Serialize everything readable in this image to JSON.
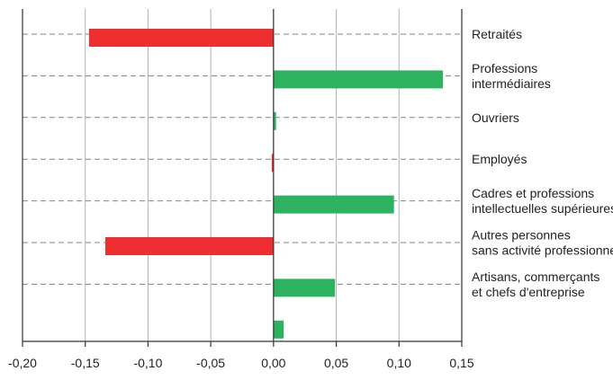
{
  "chart_data": {
    "type": "bar",
    "orientation": "horizontal",
    "categories": [
      [
        "Retraités"
      ],
      [
        "Professions",
        "intermédiaires"
      ],
      [
        "Ouvriers"
      ],
      [
        "Employés"
      ],
      [
        "Cadres et professions",
        "intellectuelles supérieures"
      ],
      [
        "Autres personnes",
        "sans activité professionnelle"
      ],
      [
        "Artisans, commerçants",
        "et chefs d'entreprise"
      ],
      [
        ""
      ]
    ],
    "values": [
      -0.147,
      0.135,
      0.002,
      -0.001,
      0.096,
      -0.134,
      0.049,
      0.008
    ],
    "xlim": [
      -0.2,
      0.15
    ],
    "xticks": [
      "-0,20",
      "-0,15",
      "-0,10",
      "-0,05",
      "0,00",
      "0,05",
      "0,10",
      "0,15"
    ],
    "xtick_values": [
      -0.2,
      -0.15,
      -0.1,
      -0.05,
      0.0,
      0.05,
      0.1,
      0.15
    ],
    "grid": true,
    "colors": {
      "positive": "#2db360",
      "negative": "#ee2e31"
    },
    "title": "",
    "xlabel": "",
    "ylabel": ""
  }
}
